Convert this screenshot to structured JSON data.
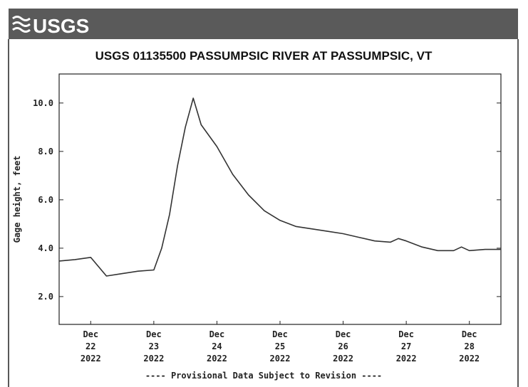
{
  "chart_data": {
    "type": "line",
    "logo": "USGS",
    "title": "USGS 01135500 PASSUMPSIC RIVER AT PASSUMPSIC, VT",
    "y_label": "Gage height, feet",
    "footer": "---- Provisional Data Subject to Revision ----",
    "x": [
      "2022-12-22T00:00",
      "2022-12-22T06:00",
      "2022-12-22T12:00",
      "2022-12-22T18:00",
      "2022-12-23T00:00",
      "2022-12-23T06:00",
      "2022-12-23T12:00",
      "2022-12-23T15:00",
      "2022-12-23T18:00",
      "2022-12-23T21:00",
      "2022-12-24T00:00",
      "2022-12-24T03:00",
      "2022-12-24T06:00",
      "2022-12-24T12:00",
      "2022-12-24T18:00",
      "2022-12-25T00:00",
      "2022-12-25T06:00",
      "2022-12-25T12:00",
      "2022-12-25T18:00",
      "2022-12-26T00:00",
      "2022-12-26T06:00",
      "2022-12-26T12:00",
      "2022-12-26T18:00",
      "2022-12-27T00:00",
      "2022-12-27T06:00",
      "2022-12-27T09:00",
      "2022-12-27T12:00",
      "2022-12-27T18:00",
      "2022-12-28T00:00",
      "2022-12-28T06:00",
      "2022-12-28T09:00",
      "2022-12-28T12:00",
      "2022-12-28T18:00",
      "2022-12-29T00:00"
    ],
    "series": [
      {
        "name": "Gage height",
        "color": "#333333",
        "values": [
          3.47,
          3.53,
          3.62,
          2.85,
          2.95,
          3.05,
          3.1,
          4.0,
          5.4,
          7.4,
          9.0,
          10.2,
          9.1,
          8.2,
          7.05,
          6.2,
          5.55,
          5.15,
          4.9,
          4.8,
          4.7,
          4.6,
          4.45,
          4.3,
          4.25,
          4.4,
          4.3,
          4.05,
          3.9,
          3.9,
          4.05,
          3.9,
          3.95,
          3.95
        ]
      }
    ],
    "xlim": [
      "2022-12-22T00:00",
      "2022-12-29T00:00"
    ],
    "xticks": [
      {
        "value": "2022-12-22T12:00",
        "label": [
          "Dec",
          "22",
          "2022"
        ]
      },
      {
        "value": "2022-12-23T12:00",
        "label": [
          "Dec",
          "23",
          "2022"
        ]
      },
      {
        "value": "2022-12-24T12:00",
        "label": [
          "Dec",
          "24",
          "2022"
        ]
      },
      {
        "value": "2022-12-25T12:00",
        "label": [
          "Dec",
          "25",
          "2022"
        ]
      },
      {
        "value": "2022-12-26T12:00",
        "label": [
          "Dec",
          "26",
          "2022"
        ]
      },
      {
        "value": "2022-12-27T12:00",
        "label": [
          "Dec",
          "27",
          "2022"
        ]
      },
      {
        "value": "2022-12-28T12:00",
        "label": [
          "Dec",
          "28",
          "2022"
        ]
      }
    ],
    "ylim": [
      0.85,
      11.2
    ],
    "yticks": [
      {
        "value": 2,
        "label": "2.0"
      },
      {
        "value": 4,
        "label": "4.0"
      },
      {
        "value": 6,
        "label": "6.0"
      },
      {
        "value": 8,
        "label": "8.0"
      },
      {
        "value": 10,
        "label": "10.0"
      }
    ]
  }
}
